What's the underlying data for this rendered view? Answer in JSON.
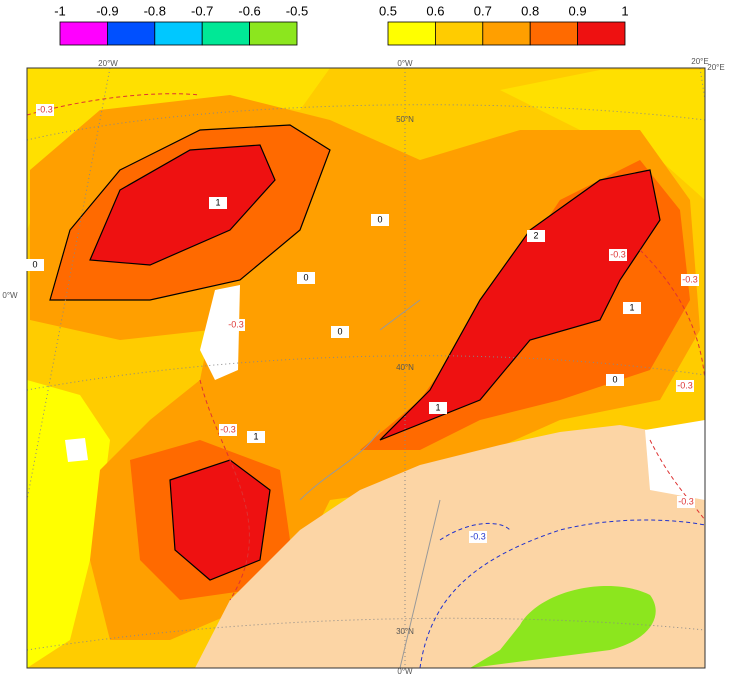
{
  "legend": {
    "negative": {
      "labels": [
        "-1",
        "-0.9",
        "-0.8",
        "-0.7",
        "-0.6",
        "-0.5"
      ],
      "colors": [
        "#ff00ff",
        "#0050ff",
        "#00c8ff",
        "#00e896",
        "#8ce61e"
      ]
    },
    "positive": {
      "labels": [
        "0.5",
        "0.6",
        "0.7",
        "0.8",
        "0.9",
        "1"
      ],
      "colors": [
        "#ffff00",
        "#ffcc00",
        "#ff9f00",
        "#ff6a00",
        "#ee1111"
      ]
    }
  },
  "map": {
    "graticule_labels": [
      "20°W",
      "0°W",
      "20°E",
      "20°E",
      "50°N",
      "40°N",
      "30°N",
      "0°W",
      "0°W"
    ],
    "contour_labels": [
      "-0.3",
      "-0.3",
      "-0.3",
      "-0.3",
      "-0.3",
      "-0.3",
      "-0.3",
      "0",
      "0",
      "0",
      "0",
      "0",
      "1",
      "1",
      "1",
      "1",
      "2",
      "-0.3"
    ]
  }
}
